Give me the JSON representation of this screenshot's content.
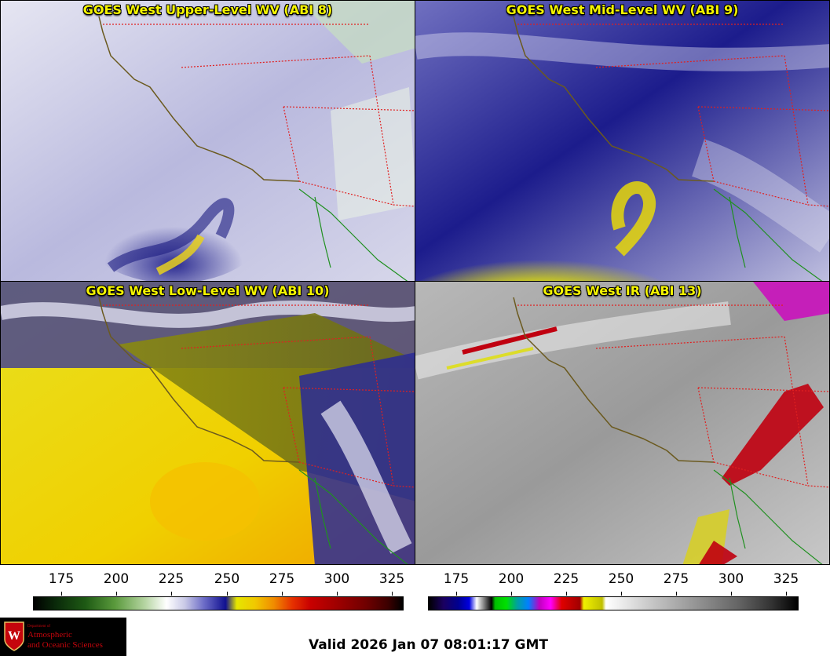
{
  "panels": [
    {
      "title": "GOES West Upper-Level WV (ABI 8)"
    },
    {
      "title": "GOES West Mid-Level WV (ABI 9)"
    },
    {
      "title": "GOES West Low-Level WV (ABI 10)"
    },
    {
      "title": "GOES West IR (ABI 13)"
    }
  ],
  "colorbars": {
    "wv": {
      "ticks": [
        "175",
        "200",
        "225",
        "250",
        "275",
        "300",
        "325"
      ]
    },
    "ir": {
      "ticks": [
        "175",
        "200",
        "225",
        "250",
        "275",
        "300",
        "325"
      ]
    }
  },
  "logo": {
    "department": "Department of",
    "line1": "Atmospheric",
    "line2": "and Oceanic Sciences",
    "crest_letter": "W"
  },
  "valid_text": "Valid 2026 Jan 07 08:01:17 GMT"
}
